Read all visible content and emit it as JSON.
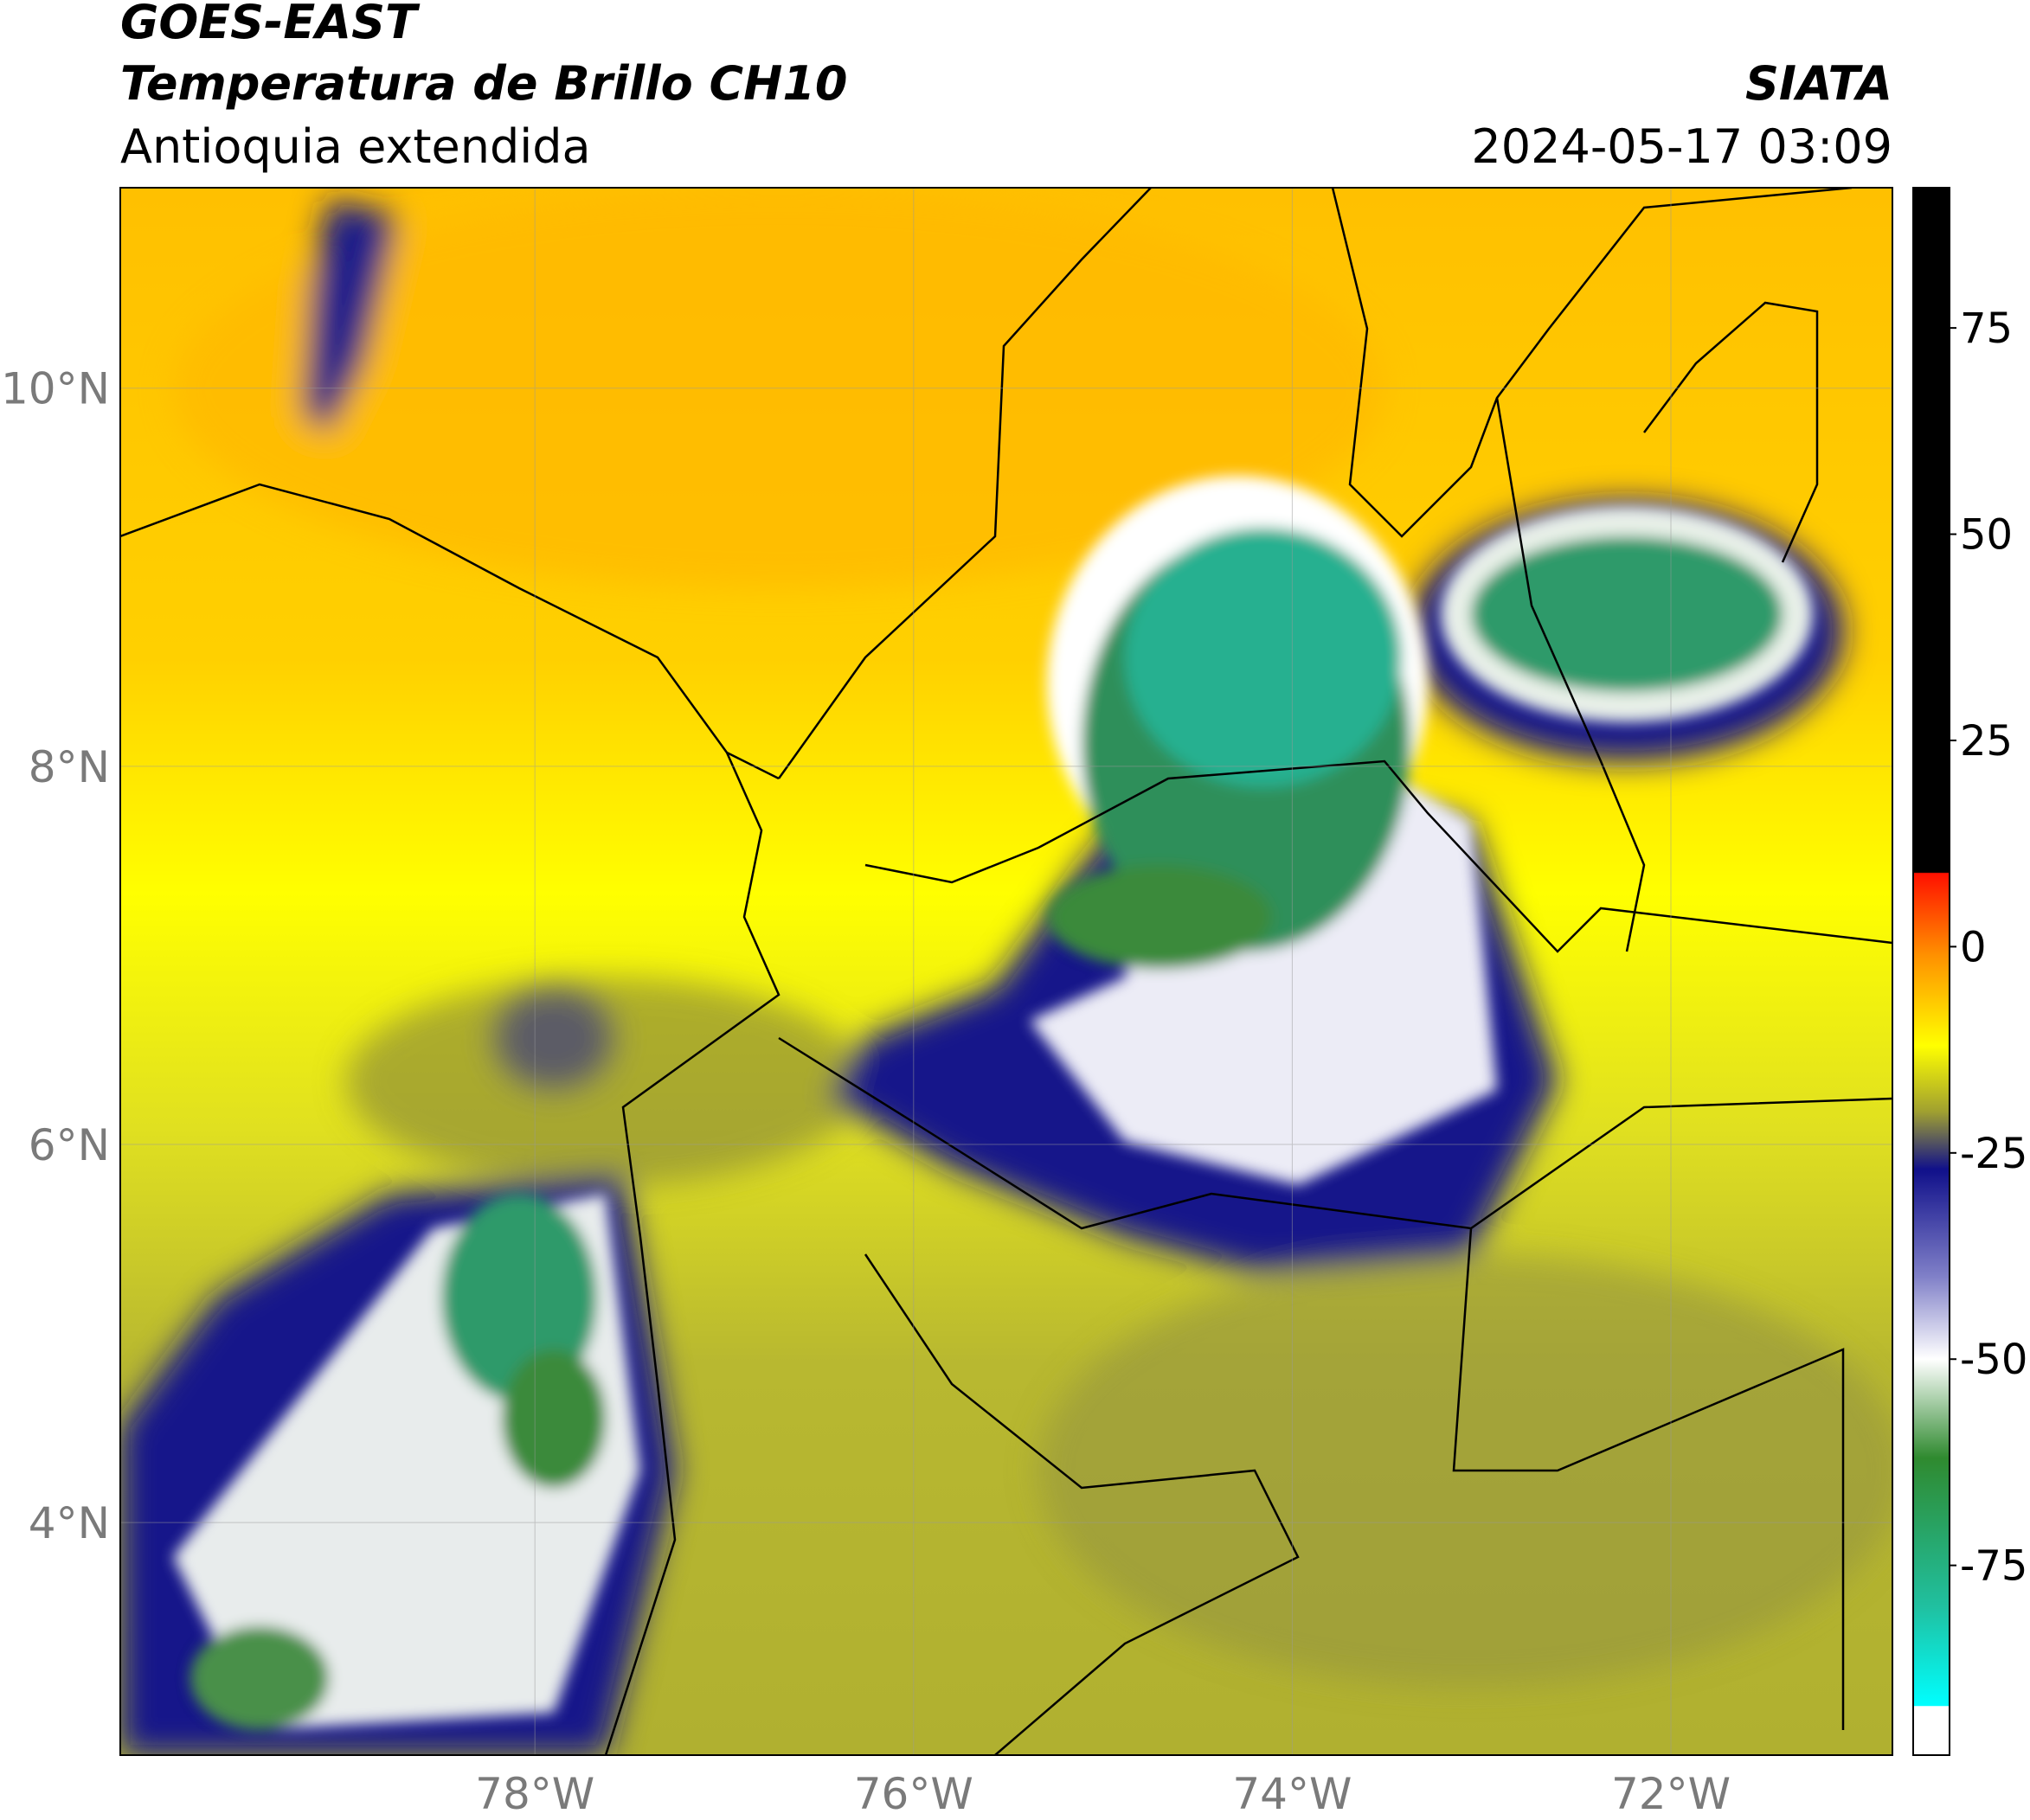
{
  "header": {
    "satellite": "GOES-EAST",
    "product": "Temperatura de Brillo CH10",
    "region": "Antioquia extendida",
    "source": "SIATA",
    "datetime": "2024-05-17 03:09"
  },
  "map": {
    "lon_range": [
      -80.19,
      -70.83
    ],
    "lat_range": [
      2.77,
      11.06
    ],
    "lon_ticks": [
      {
        "value": -78,
        "label": "78°W"
      },
      {
        "value": -76,
        "label": "76°W"
      },
      {
        "value": -74,
        "label": "74°W"
      },
      {
        "value": -72,
        "label": "72°W"
      }
    ],
    "lat_ticks": [
      {
        "value": 10,
        "label": "10°N"
      },
      {
        "value": 8,
        "label": "8°N"
      },
      {
        "value": 6,
        "label": "6°N"
      },
      {
        "value": 4,
        "label": "4°N"
      }
    ]
  },
  "colorbar": {
    "range": [
      -98,
      92
    ],
    "ticks": [
      75,
      50,
      25,
      0,
      -25,
      -50,
      -75
    ],
    "stops": [
      {
        "value": 92,
        "color": "#000000"
      },
      {
        "value": 9,
        "color": "#000000"
      },
      {
        "value": 8.9,
        "color": "#ff1000"
      },
      {
        "value": -1,
        "color": "#ff9000"
      },
      {
        "value": -12,
        "color": "#ffff00"
      },
      {
        "value": -20,
        "color": "#a0a030"
      },
      {
        "value": -27,
        "color": "#10108a"
      },
      {
        "value": -40,
        "color": "#8080c8"
      },
      {
        "value": -50,
        "color": "#ffffff"
      },
      {
        "value": -62,
        "color": "#2f8a2f"
      },
      {
        "value": -80,
        "color": "#20c0a0"
      },
      {
        "value": -92,
        "color": "#00ffff"
      },
      {
        "value": -92.1,
        "color": "#ffffff"
      },
      {
        "value": -98,
        "color": "#ffffff"
      }
    ]
  }
}
